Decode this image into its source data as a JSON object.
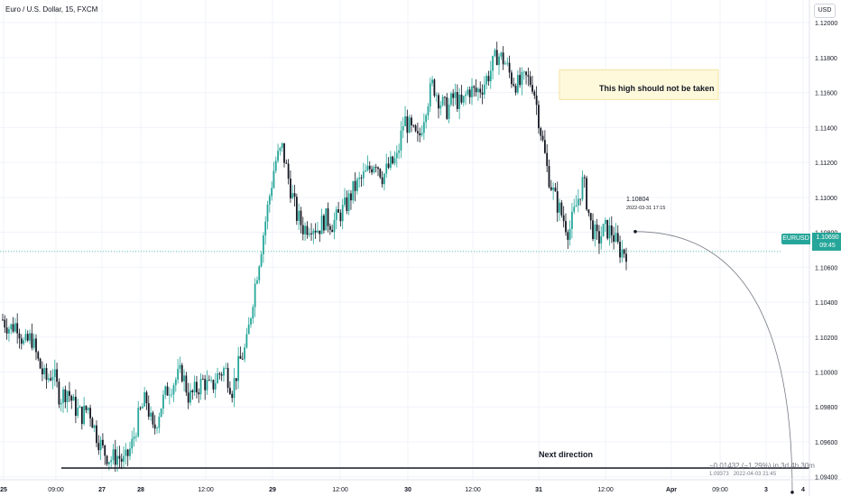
{
  "header": {
    "symbol_title": "Euro / U.S. Dollar, 15, FXCM"
  },
  "currency_badge": "USD",
  "current_price": {
    "symbol": "EURUSD",
    "value": "1.10690",
    "countdown": "09:45"
  },
  "annotations": {
    "box_text": "This high should not be taken",
    "next_direction": "Next direction",
    "point_price": "1.10804",
    "point_datetime": "2022-03-31 17:15",
    "projection_change": "−0.01432 (−1.29%) in 3d 4h 30m",
    "projection_target": "1.09373",
    "projection_datetime": "2022-04-03 21:45"
  },
  "colors": {
    "up": "#26a69a",
    "down": "#131722",
    "grid": "#f0f3fa",
    "price_line": "#26a69a"
  },
  "chart_data": {
    "type": "candlestick",
    "title": "Euro / U.S. Dollar, 15, FXCM",
    "ylim": [
      1.0929,
      1.1213
    ],
    "y_ticks": [
      "1.12000",
      "1.11800",
      "1.11600",
      "1.11400",
      "1.11200",
      "1.11000",
      "1.10800",
      "1.10600",
      "1.10400",
      "1.10200",
      "1.10000",
      "1.09800",
      "1.09600",
      "1.09400"
    ],
    "x_ticks": [
      "25",
      "09:00",
      "27",
      "28",
      "12:00",
      "29",
      "12:00",
      "30",
      "12:00",
      "31",
      "12:00",
      "Apr",
      "09:00",
      "3",
      "4"
    ],
    "price_path": [
      [
        0,
        1.103
      ],
      [
        1,
        1.1025
      ],
      [
        2,
        1.1028
      ],
      [
        3,
        1.1015
      ],
      [
        4,
        1.102
      ],
      [
        5,
        1.1005
      ],
      [
        6,
        1.0995
      ],
      [
        7,
        1.1
      ],
      [
        8,
        1.0985
      ],
      [
        9,
        1.099
      ],
      [
        10,
        1.098
      ],
      [
        11,
        1.0975
      ],
      [
        12,
        1.098
      ],
      [
        13,
        1.0965
      ],
      [
        14,
        1.0955
      ],
      [
        15,
        1.095
      ],
      [
        16,
        1.0952
      ],
      [
        17,
        1.0948
      ],
      [
        18,
        1.0958
      ],
      [
        19,
        1.0975
      ],
      [
        20,
        1.0985
      ],
      [
        21,
        1.0965
      ],
      [
        22,
        1.098
      ],
      [
        23,
        1.099
      ],
      [
        24,
        1.0995
      ],
      [
        25,
        1.1
      ],
      [
        26,
        1.0985
      ],
      [
        27,
        1.099
      ],
      [
        28,
        1.0995
      ],
      [
        29,
        1.099
      ],
      [
        30,
        1.0998
      ],
      [
        31,
        1.1002
      ],
      [
        32,
        1.099
      ],
      [
        33,
        1.1005
      ],
      [
        34,
        1.1015
      ],
      [
        35,
        1.1045
      ],
      [
        36,
        1.107
      ],
      [
        37,
        1.1095
      ],
      [
        38,
        1.112
      ],
      [
        39,
        1.1128
      ],
      [
        40,
        1.1108
      ],
      [
        41,
        1.109
      ],
      [
        42,
        1.1082
      ],
      [
        43,
        1.1085
      ],
      [
        44,
        1.1082
      ],
      [
        45,
        1.1088
      ],
      [
        46,
        1.1085
      ],
      [
        47,
        1.109
      ],
      [
        48,
        1.1096
      ],
      [
        49,
        1.1105
      ],
      [
        50,
        1.111
      ],
      [
        51,
        1.1115
      ],
      [
        52,
        1.1122
      ],
      [
        53,
        1.1112
      ],
      [
        54,
        1.1118
      ],
      [
        55,
        1.1122
      ],
      [
        56,
        1.1145
      ],
      [
        57,
        1.1138
      ],
      [
        58,
        1.1132
      ],
      [
        59,
        1.1152
      ],
      [
        60,
        1.1165
      ],
      [
        61,
        1.1155
      ],
      [
        62,
        1.115
      ],
      [
        63,
        1.1158
      ],
      [
        64,
        1.1152
      ],
      [
        65,
        1.1162
      ],
      [
        66,
        1.116
      ],
      [
        67,
        1.1164
      ],
      [
        68,
        1.1172
      ],
      [
        69,
        1.1182
      ],
      [
        70,
        1.1178
      ],
      [
        71,
        1.1168
      ],
      [
        72,
        1.1164
      ],
      [
        73,
        1.1168
      ],
      [
        74,
        1.1165
      ],
      [
        75,
        1.114
      ],
      [
        76,
        1.1115
      ],
      [
        77,
        1.11
      ],
      [
        78,
        1.109
      ],
      [
        79,
        1.108
      ],
      [
        80,
        1.1095
      ],
      [
        81,
        1.111
      ],
      [
        82,
        1.1085
      ],
      [
        83,
        1.1075
      ],
      [
        84,
        1.1082
      ],
      [
        85,
        1.108
      ],
      [
        86,
        1.107
      ],
      [
        87,
        1.1069
      ]
    ],
    "horizontal_level": {
      "y": 1.0945,
      "style": "solid"
    },
    "price_line": {
      "y": 1.1069,
      "style": "dotted"
    },
    "resistance_box": {
      "y_top": 1.1173,
      "y_bottom": 1.1156
    },
    "projection": {
      "from_value": 1.10804,
      "from_time": "2022-03-31 17:15",
      "to_value": 1.09373,
      "to_time": "2022-04-03 21:45"
    }
  }
}
